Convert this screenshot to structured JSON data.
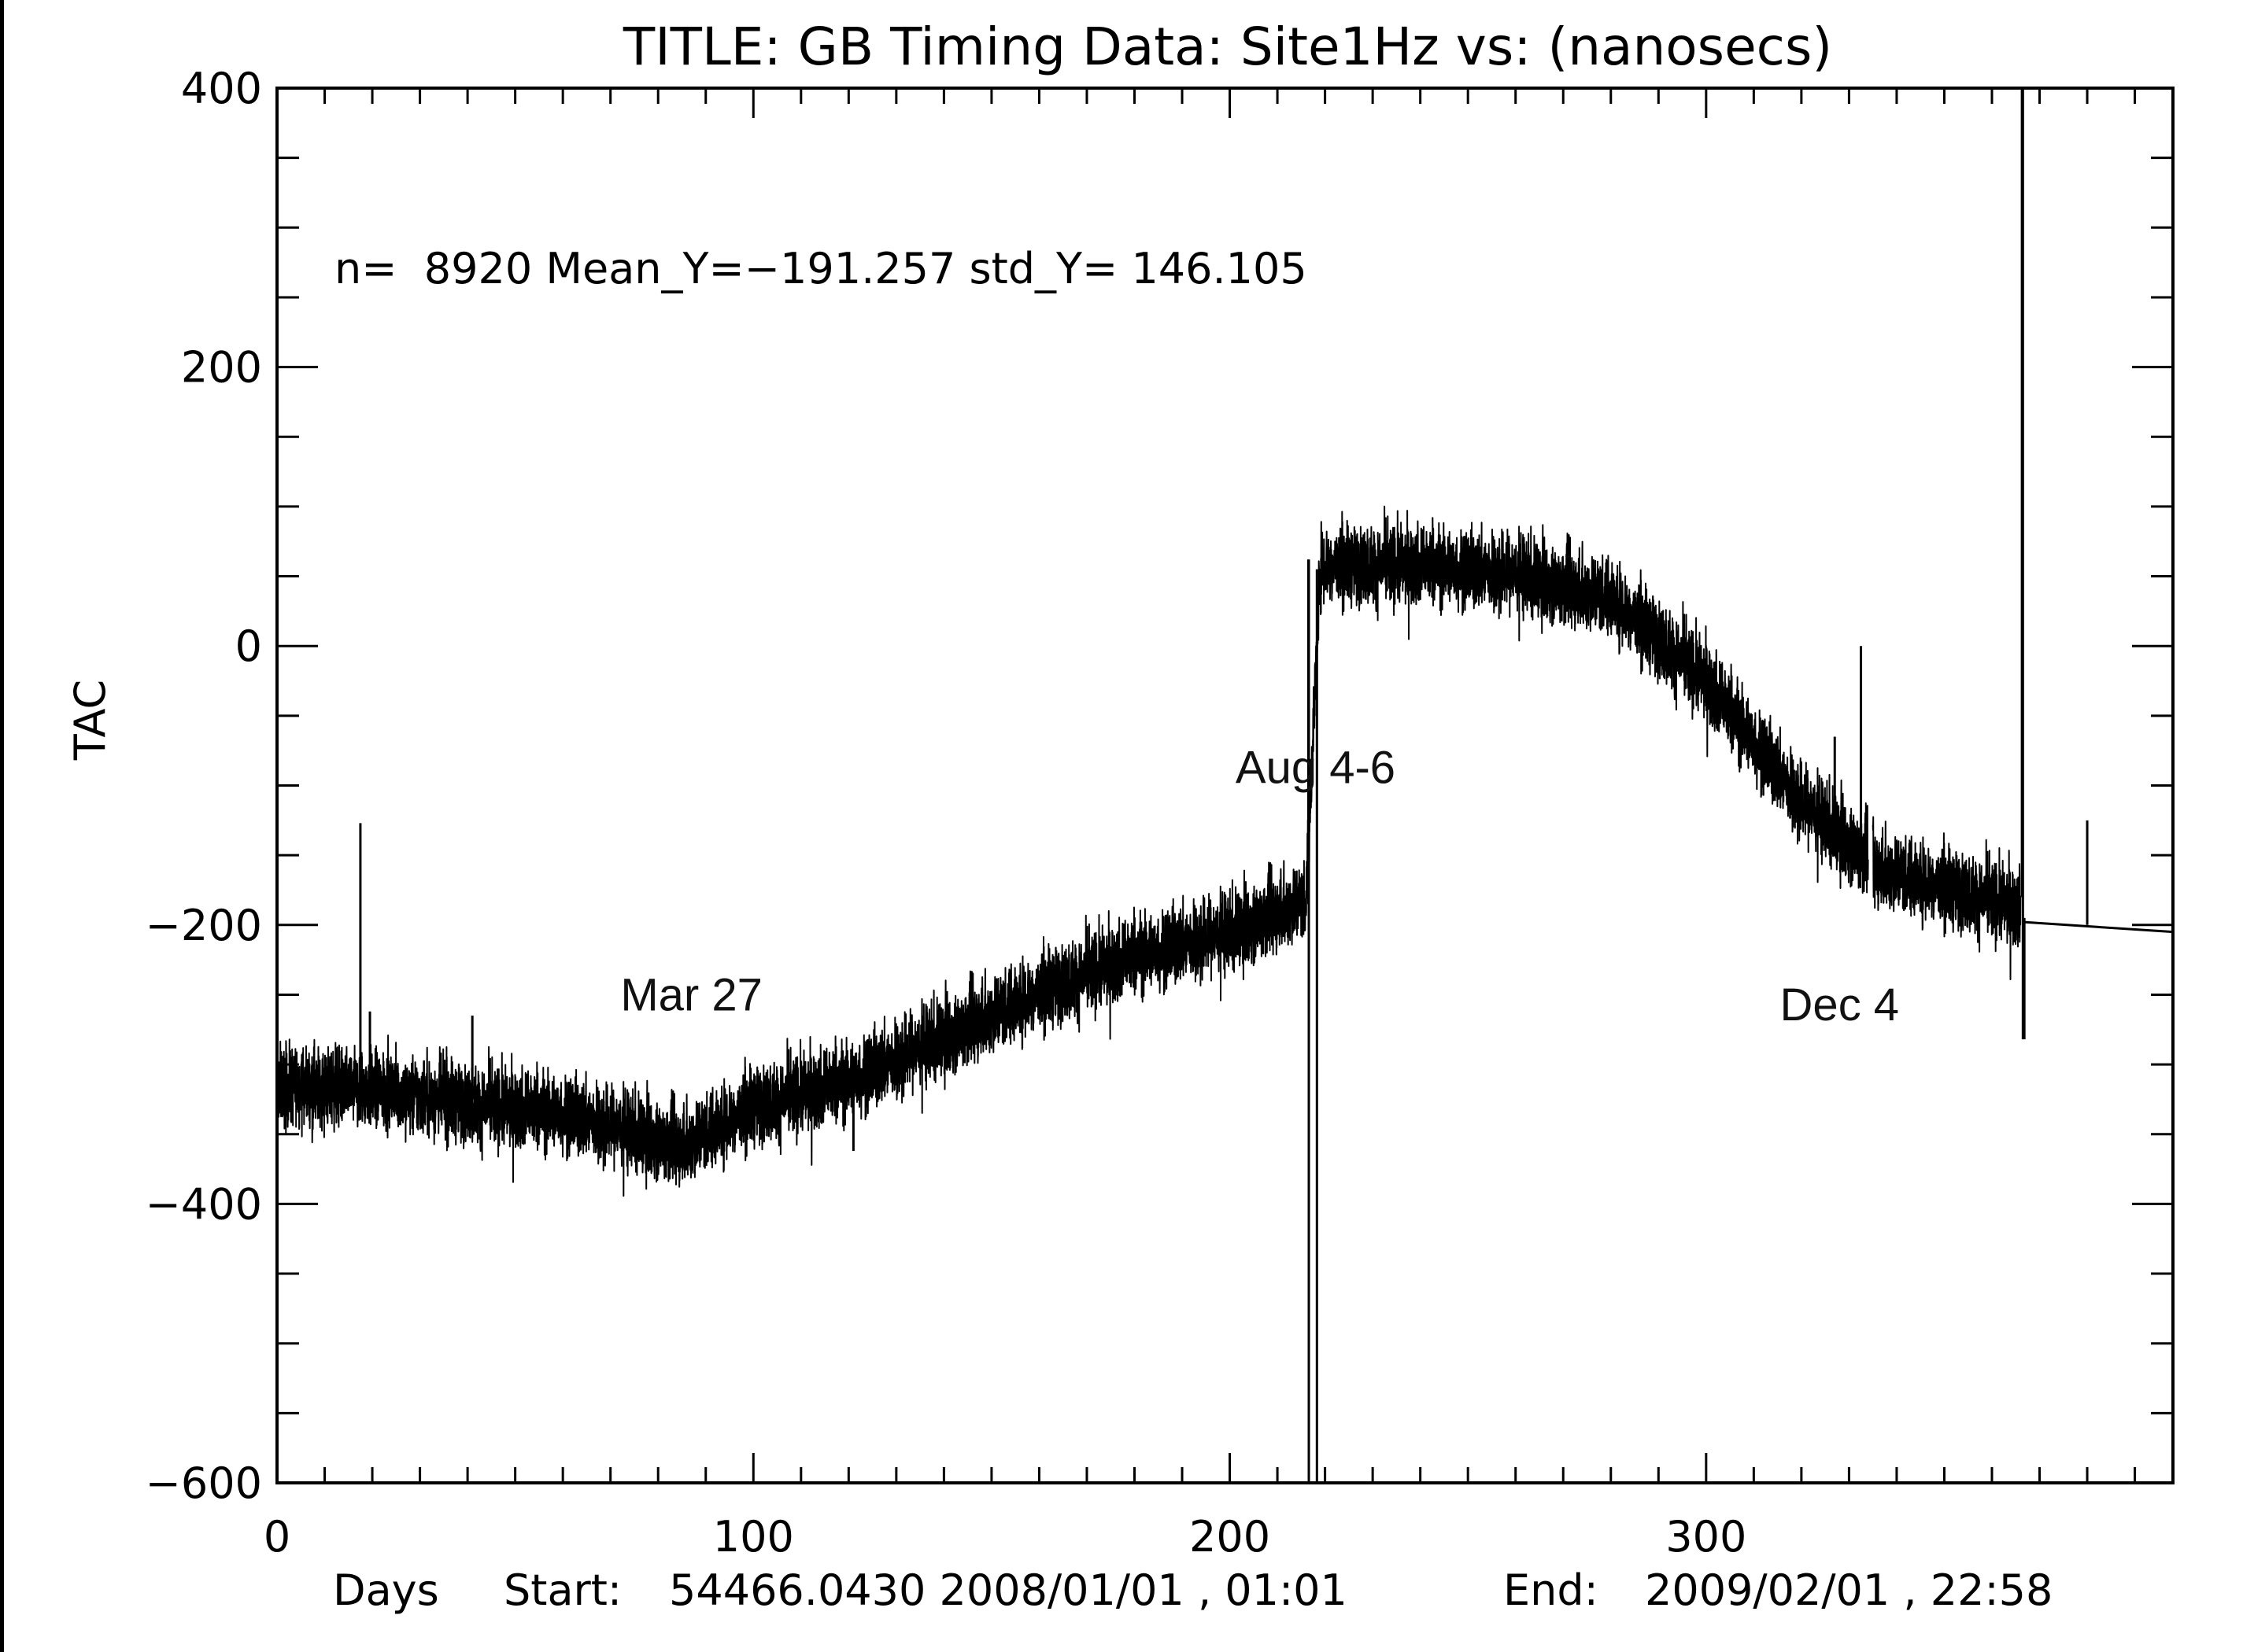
{
  "chart_data": {
    "type": "line",
    "title": "TITLE: GB Timing Data: Site1Hz vs: (nanosecs)",
    "xlabel": "Days",
    "ylabel": "TAC",
    "xlim": [
      0,
      398
    ],
    "ylim": [
      -600,
      400
    ],
    "x_ticks": [
      0,
      100,
      200,
      300
    ],
    "y_ticks": [
      400,
      200,
      0,
      -200,
      -400,
      -600
    ],
    "x_tick_labels": [
      "0",
      "100",
      "200",
      "300"
    ],
    "y_tick_labels": [
      "400",
      "200",
      "0",
      "−200",
      "−400",
      "−600"
    ],
    "stats": "n=  8920 Mean_Y=−191.257 std_Y= 146.105",
    "footer": {
      "start_label": "Start:",
      "start_value": "54466.0430 2008/01/01 , 01:01",
      "end_label": "End:",
      "end_value": "2009/02/01 , 22:58"
    },
    "annotations": [
      {
        "text": "Mar 27",
        "x": 87,
        "y": -250
      },
      {
        "text": "Aug 4-6",
        "x": 218,
        "y": -87
      },
      {
        "text": "Dec 4",
        "x": 328,
        "y": -257
      }
    ],
    "grid": false,
    "series": [
      {
        "trend": [
          [
            0,
            -315
          ],
          [
            20,
            -318
          ],
          [
            40,
            -328
          ],
          [
            60,
            -335
          ],
          [
            85,
            -358
          ],
          [
            100,
            -330
          ],
          [
            120,
            -312
          ],
          [
            140,
            -280
          ],
          [
            160,
            -248
          ],
          [
            180,
            -222
          ],
          [
            200,
            -205
          ],
          [
            216,
            -182
          ],
          [
            219,
            58
          ],
          [
            240,
            58
          ],
          [
            260,
            52
          ],
          [
            280,
            35
          ],
          [
            300,
            -25
          ],
          [
            320,
            -112
          ],
          [
            334,
            -152
          ],
          [
            335,
            -158
          ],
          [
            366,
            -188
          ],
          [
            367,
            -198
          ],
          [
            398,
            -205
          ]
        ],
        "noise_amplitude": 14,
        "spikes": [
          {
            "x": 17.5,
            "y_from": -310,
            "y_to": -127
          },
          {
            "x": 19.5,
            "y_from": -318,
            "y_to": -262
          },
          {
            "x": 41,
            "y_from": -325,
            "y_to": -265
          },
          {
            "x": 121,
            "y_from": -325,
            "y_to": -362
          },
          {
            "x": 216.5,
            "y_from": -185,
            "y_to": 62
          },
          {
            "x": 216.6,
            "y_from": 62,
            "y_to": -600
          },
          {
            "x": 218.3,
            "y_from": -600,
            "y_to": 55
          },
          {
            "x": 327,
            "y_from": -130,
            "y_to": -65
          },
          {
            "x": 332.5,
            "y_from": -140,
            "y_to": 0
          },
          {
            "x": 366.3,
            "y_from": -180,
            "y_to": 400
          },
          {
            "x": 366.5,
            "y_from": 400,
            "y_to": -282
          },
          {
            "x": 366.8,
            "y_from": -282,
            "y_to": -195
          },
          {
            "x": 380,
            "y_from": -200,
            "y_to": -125
          }
        ]
      }
    ]
  }
}
